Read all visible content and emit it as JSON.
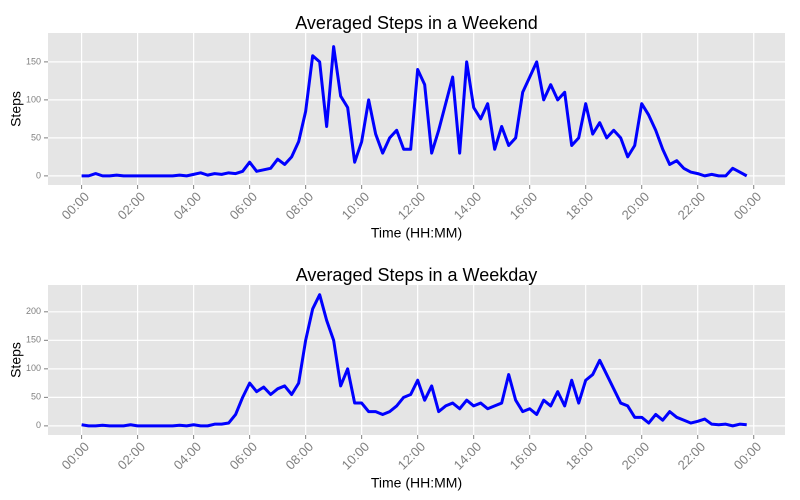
{
  "chart_data": [
    {
      "type": "line",
      "title": "Averaged Steps in a Weekend",
      "x_label": "Time (HH:MM)",
      "y_label": "Steps",
      "color": "#0000ff",
      "grid": true,
      "x": [
        0,
        15,
        30,
        45,
        60,
        75,
        90,
        105,
        120,
        135,
        150,
        165,
        180,
        195,
        210,
        225,
        240,
        255,
        270,
        285,
        300,
        315,
        330,
        345,
        360,
        375,
        390,
        405,
        420,
        435,
        450,
        465,
        480,
        495,
        510,
        525,
        540,
        555,
        570,
        585,
        600,
        615,
        630,
        645,
        660,
        675,
        690,
        705,
        720,
        735,
        750,
        765,
        780,
        795,
        810,
        825,
        840,
        855,
        870,
        885,
        900,
        915,
        930,
        945,
        960,
        975,
        990,
        1005,
        1020,
        1035,
        1050,
        1065,
        1080,
        1095,
        1110,
        1125,
        1140,
        1155,
        1170,
        1185,
        1200,
        1215,
        1230,
        1245,
        1260,
        1275,
        1290,
        1305,
        1320,
        1335,
        1350,
        1365,
        1380,
        1395,
        1410,
        1425
      ],
      "values": [
        0,
        0,
        3,
        0,
        0,
        1,
        0,
        0,
        0,
        0,
        0,
        0,
        0,
        0,
        1,
        0,
        2,
        4,
        1,
        3,
        2,
        4,
        3,
        6,
        18,
        6,
        8,
        10,
        22,
        15,
        25,
        45,
        85,
        158,
        150,
        65,
        170,
        105,
        90,
        18,
        45,
        100,
        55,
        30,
        50,
        60,
        35,
        35,
        140,
        120,
        30,
        60,
        95,
        130,
        30,
        150,
        90,
        75,
        95,
        35,
        65,
        40,
        50,
        110,
        130,
        150,
        100,
        120,
        100,
        110,
        40,
        50,
        95,
        55,
        70,
        50,
        60,
        50,
        25,
        40,
        95,
        80,
        60,
        35,
        15,
        20,
        10,
        5,
        3,
        0,
        2,
        0,
        0,
        10,
        5,
        0
      ],
      "xlim": [
        -72,
        1507
      ],
      "ylim": [
        -12,
        188
      ],
      "xticks": [
        {
          "value": 0,
          "label": "00:00"
        },
        {
          "value": 120,
          "label": "02:00"
        },
        {
          "value": 240,
          "label": "04:00"
        },
        {
          "value": 360,
          "label": "06:00"
        },
        {
          "value": 480,
          "label": "08:00"
        },
        {
          "value": 600,
          "label": "10:00"
        },
        {
          "value": 720,
          "label": "12:00"
        },
        {
          "value": 840,
          "label": "14:00"
        },
        {
          "value": 960,
          "label": "16:00"
        },
        {
          "value": 1080,
          "label": "18:00"
        },
        {
          "value": 1200,
          "label": "20:00"
        },
        {
          "value": 1320,
          "label": "22:00"
        },
        {
          "value": 1440,
          "label": "00:00"
        }
      ],
      "yticks": [
        0,
        50,
        100,
        150
      ]
    },
    {
      "type": "line",
      "title": "Averaged Steps in a Weekday",
      "x_label": "Time (HH:MM)",
      "y_label": "Steps",
      "color": "#0000ff",
      "grid": true,
      "x": [
        0,
        15,
        30,
        45,
        60,
        75,
        90,
        105,
        120,
        135,
        150,
        165,
        180,
        195,
        210,
        225,
        240,
        255,
        270,
        285,
        300,
        315,
        330,
        345,
        360,
        375,
        390,
        405,
        420,
        435,
        450,
        465,
        480,
        495,
        510,
        525,
        540,
        555,
        570,
        585,
        600,
        615,
        630,
        645,
        660,
        675,
        690,
        705,
        720,
        735,
        750,
        765,
        780,
        795,
        810,
        825,
        840,
        855,
        870,
        885,
        900,
        915,
        930,
        945,
        960,
        975,
        990,
        1005,
        1020,
        1035,
        1050,
        1065,
        1080,
        1095,
        1110,
        1125,
        1140,
        1155,
        1170,
        1185,
        1200,
        1215,
        1230,
        1245,
        1260,
        1275,
        1290,
        1305,
        1320,
        1335,
        1350,
        1365,
        1380,
        1395,
        1410,
        1425
      ],
      "values": [
        2,
        0,
        0,
        1,
        0,
        0,
        0,
        2,
        0,
        0,
        0,
        0,
        0,
        0,
        1,
        0,
        2,
        0,
        0,
        3,
        3,
        5,
        20,
        50,
        75,
        60,
        68,
        55,
        65,
        70,
        55,
        75,
        150,
        205,
        230,
        185,
        150,
        70,
        100,
        40,
        40,
        25,
        25,
        20,
        25,
        35,
        50,
        55,
        80,
        45,
        70,
        25,
        35,
        40,
        30,
        45,
        35,
        40,
        30,
        35,
        40,
        90,
        45,
        25,
        30,
        20,
        45,
        35,
        60,
        35,
        80,
        40,
        80,
        90,
        115,
        90,
        65,
        40,
        35,
        15,
        15,
        5,
        20,
        10,
        25,
        15,
        10,
        5,
        8,
        12,
        3,
        2,
        3,
        0,
        3,
        2
      ],
      "xlim": [
        -72,
        1507
      ],
      "ylim": [
        -16,
        247
      ],
      "xticks": [
        {
          "value": 0,
          "label": "00:00"
        },
        {
          "value": 120,
          "label": "02:00"
        },
        {
          "value": 240,
          "label": "04:00"
        },
        {
          "value": 360,
          "label": "06:00"
        },
        {
          "value": 480,
          "label": "08:00"
        },
        {
          "value": 600,
          "label": "10:00"
        },
        {
          "value": 720,
          "label": "12:00"
        },
        {
          "value": 840,
          "label": "14:00"
        },
        {
          "value": 960,
          "label": "16:00"
        },
        {
          "value": 1080,
          "label": "18:00"
        },
        {
          "value": 1200,
          "label": "20:00"
        },
        {
          "value": 1320,
          "label": "22:00"
        },
        {
          "value": 1440,
          "label": "00:00"
        }
      ],
      "yticks": [
        0,
        50,
        100,
        150,
        200
      ]
    }
  ]
}
